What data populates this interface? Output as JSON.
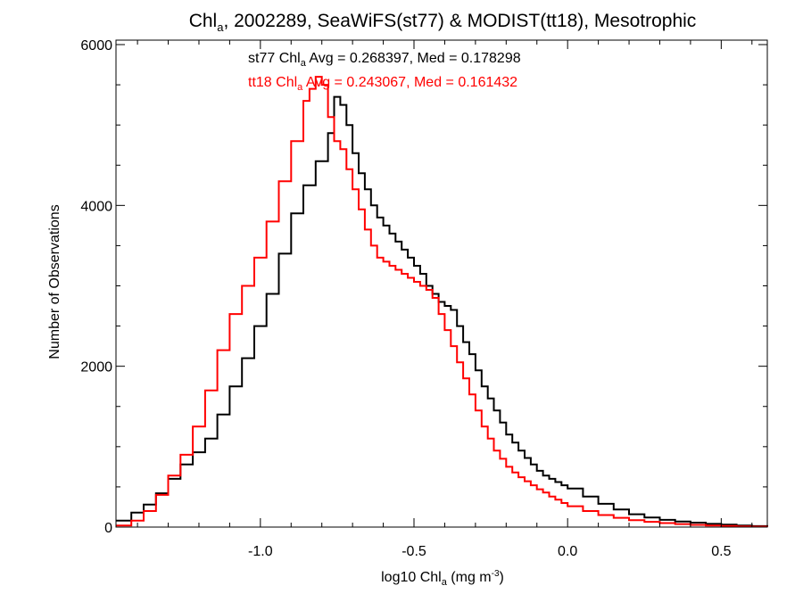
{
  "chart_data": {
    "type": "line",
    "title": {
      "pre": "Chl",
      "sub": "a",
      "post": ", 2002289, SeaWiFS(st77) & MODIST(tt18), Mesotrophic"
    },
    "xlabel": {
      "pre": "log10 Chl",
      "sub": "a",
      "mid": " (mg m",
      "sup": "-3",
      "post": ")"
    },
    "ylabel": "Number of Observations",
    "xlim": [
      -1.47,
      0.65
    ],
    "ylim": [
      0,
      6000
    ],
    "xticks": [
      -1.0,
      -0.5,
      0.0,
      0.5
    ],
    "xtick_labels": [
      "-1.0",
      "-0.5",
      "0.0",
      "0.5"
    ],
    "yticks": [
      0,
      2000,
      4000,
      6000
    ],
    "ytick_labels": [
      "0",
      "2000",
      "4000",
      "6000"
    ],
    "grid": false,
    "annotations": [
      {
        "pre": "st77 Chl",
        "sub": "a",
        "post": " Avg = 0.268397, Med = 0.178298",
        "color": "#000000"
      },
      {
        "pre": "tt18 Chl",
        "sub": "a",
        "post": " Avg = 0.243067, Med = 0.161432",
        "color": "#ff0000"
      }
    ],
    "series": [
      {
        "color": "#000000",
        "points": [
          [
            -1.47,
            80
          ],
          [
            -1.42,
            180
          ],
          [
            -1.38,
            280
          ],
          [
            -1.34,
            420
          ],
          [
            -1.3,
            600
          ],
          [
            -1.26,
            780
          ],
          [
            -1.22,
            930
          ],
          [
            -1.18,
            1100
          ],
          [
            -1.14,
            1400
          ],
          [
            -1.1,
            1750
          ],
          [
            -1.06,
            2100
          ],
          [
            -1.02,
            2500
          ],
          [
            -0.98,
            2900
          ],
          [
            -0.94,
            3400
          ],
          [
            -0.9,
            3900
          ],
          [
            -0.86,
            4250
          ],
          [
            -0.82,
            4550
          ],
          [
            -0.78,
            4900
          ],
          [
            -0.76,
            5350
          ],
          [
            -0.74,
            5250
          ],
          [
            -0.72,
            5000
          ],
          [
            -0.7,
            4650
          ],
          [
            -0.68,
            4400
          ],
          [
            -0.66,
            4200
          ],
          [
            -0.64,
            4000
          ],
          [
            -0.62,
            3850
          ],
          [
            -0.6,
            3750
          ],
          [
            -0.58,
            3650
          ],
          [
            -0.56,
            3550
          ],
          [
            -0.54,
            3450
          ],
          [
            -0.52,
            3350
          ],
          [
            -0.5,
            3250
          ],
          [
            -0.48,
            3150
          ],
          [
            -0.46,
            3000
          ],
          [
            -0.44,
            2900
          ],
          [
            -0.42,
            2800
          ],
          [
            -0.4,
            2750
          ],
          [
            -0.38,
            2700
          ],
          [
            -0.36,
            2500
          ],
          [
            -0.34,
            2300
          ],
          [
            -0.32,
            2150
          ],
          [
            -0.3,
            1950
          ],
          [
            -0.28,
            1750
          ],
          [
            -0.26,
            1600
          ],
          [
            -0.24,
            1450
          ],
          [
            -0.22,
            1300
          ],
          [
            -0.2,
            1150
          ],
          [
            -0.18,
            1050
          ],
          [
            -0.16,
            950
          ],
          [
            -0.14,
            860
          ],
          [
            -0.12,
            780
          ],
          [
            -0.1,
            700
          ],
          [
            -0.08,
            640
          ],
          [
            -0.06,
            600
          ],
          [
            -0.04,
            560
          ],
          [
            -0.02,
            520
          ],
          [
            0.0,
            480
          ],
          [
            0.05,
            380
          ],
          [
            0.1,
            290
          ],
          [
            0.15,
            220
          ],
          [
            0.2,
            160
          ],
          [
            0.25,
            120
          ],
          [
            0.3,
            90
          ],
          [
            0.35,
            70
          ],
          [
            0.4,
            55
          ],
          [
            0.45,
            40
          ],
          [
            0.5,
            30
          ],
          [
            0.55,
            20
          ],
          [
            0.6,
            12
          ],
          [
            0.65,
            8
          ]
        ]
      },
      {
        "color": "#ff0000",
        "points": [
          [
            -1.47,
            20
          ],
          [
            -1.42,
            80
          ],
          [
            -1.38,
            200
          ],
          [
            -1.34,
            400
          ],
          [
            -1.3,
            640
          ],
          [
            -1.26,
            900
          ],
          [
            -1.22,
            1250
          ],
          [
            -1.18,
            1700
          ],
          [
            -1.14,
            2200
          ],
          [
            -1.1,
            2650
          ],
          [
            -1.06,
            3000
          ],
          [
            -1.02,
            3350
          ],
          [
            -0.98,
            3800
          ],
          [
            -0.94,
            4300
          ],
          [
            -0.9,
            4800
          ],
          [
            -0.86,
            5300
          ],
          [
            -0.84,
            5450
          ],
          [
            -0.82,
            5600
          ],
          [
            -0.8,
            5500
          ],
          [
            -0.78,
            5100
          ],
          [
            -0.76,
            4800
          ],
          [
            -0.74,
            4700
          ],
          [
            -0.72,
            4450
          ],
          [
            -0.7,
            4200
          ],
          [
            -0.68,
            3950
          ],
          [
            -0.66,
            3700
          ],
          [
            -0.64,
            3500
          ],
          [
            -0.62,
            3350
          ],
          [
            -0.6,
            3300
          ],
          [
            -0.58,
            3250
          ],
          [
            -0.56,
            3200
          ],
          [
            -0.54,
            3150
          ],
          [
            -0.52,
            3100
          ],
          [
            -0.5,
            3050
          ],
          [
            -0.48,
            3000
          ],
          [
            -0.46,
            2950
          ],
          [
            -0.44,
            2850
          ],
          [
            -0.42,
            2650
          ],
          [
            -0.4,
            2450
          ],
          [
            -0.38,
            2250
          ],
          [
            -0.36,
            2050
          ],
          [
            -0.34,
            1850
          ],
          [
            -0.32,
            1650
          ],
          [
            -0.3,
            1450
          ],
          [
            -0.28,
            1250
          ],
          [
            -0.26,
            1100
          ],
          [
            -0.24,
            950
          ],
          [
            -0.22,
            850
          ],
          [
            -0.2,
            750
          ],
          [
            -0.18,
            680
          ],
          [
            -0.16,
            620
          ],
          [
            -0.14,
            570
          ],
          [
            -0.12,
            520
          ],
          [
            -0.1,
            470
          ],
          [
            -0.08,
            430
          ],
          [
            -0.06,
            380
          ],
          [
            -0.04,
            340
          ],
          [
            -0.02,
            300
          ],
          [
            0.0,
            260
          ],
          [
            0.05,
            200
          ],
          [
            0.1,
            150
          ],
          [
            0.15,
            115
          ],
          [
            0.2,
            85
          ],
          [
            0.25,
            65
          ],
          [
            0.3,
            50
          ],
          [
            0.35,
            38
          ],
          [
            0.4,
            28
          ],
          [
            0.45,
            20
          ],
          [
            0.5,
            14
          ],
          [
            0.55,
            9
          ],
          [
            0.6,
            5
          ],
          [
            0.65,
            3
          ]
        ]
      }
    ]
  }
}
